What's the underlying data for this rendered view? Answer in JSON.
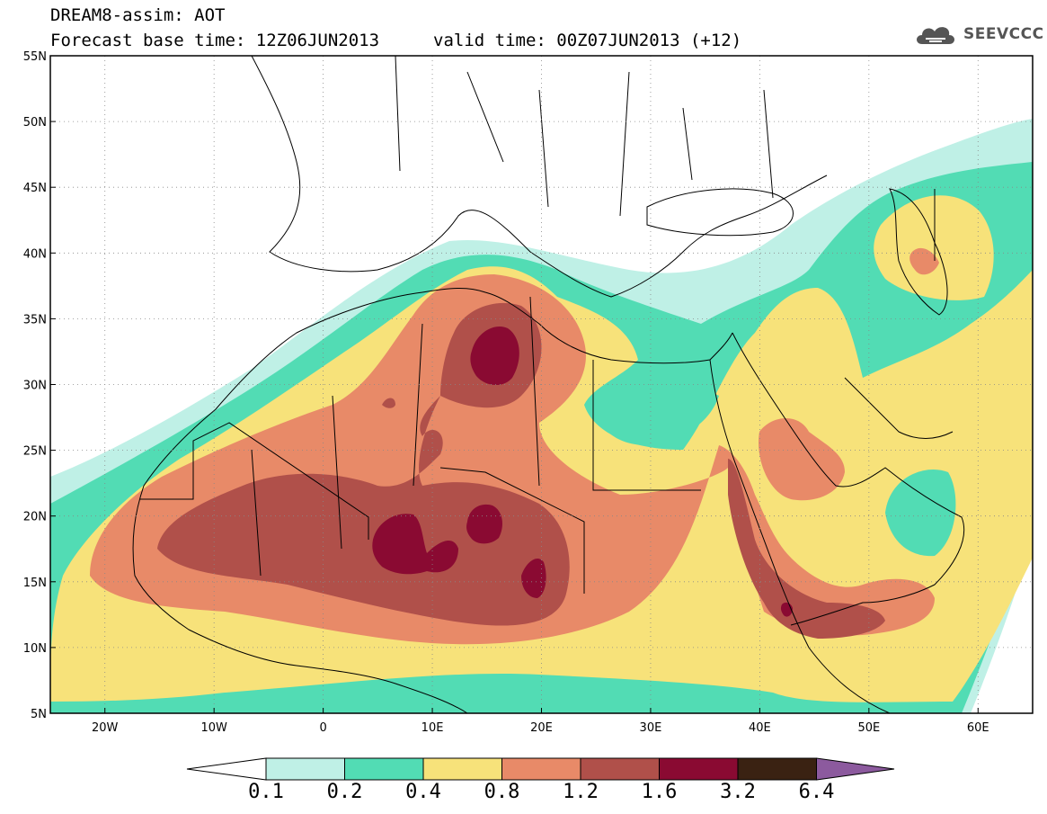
{
  "header": {
    "title": "DREAM8-assim: AOT",
    "base_time_label": "Forecast base time: 12Z06JUN2013",
    "valid_time_label": "valid time: 00Z07JUN2013 (+12)",
    "logo_text": "SEEVCCC",
    "logo_icon": "cloud-icon"
  },
  "map": {
    "lon_range": [
      -25,
      65
    ],
    "lat_range": [
      5,
      55
    ],
    "lat_ticks": [
      "5N",
      "10N",
      "15N",
      "20N",
      "25N",
      "30N",
      "35N",
      "40N",
      "45N",
      "50N",
      "55N"
    ],
    "lon_ticks": [
      "20W",
      "10W",
      "0",
      "10E",
      "20E",
      "30E",
      "40E",
      "50E",
      "60E"
    ],
    "grid": "dotted"
  },
  "legend": {
    "levels": [
      "0.1",
      "0.2",
      "0.4",
      "0.8",
      "1.2",
      "1.6",
      "3.2",
      "6.4"
    ],
    "colors": {
      "below": "#ffffff",
      "c1": "#bff0e6",
      "c2": "#52dcb4",
      "c3": "#f7e27a",
      "c4": "#e88a68",
      "c5": "#b0504a",
      "c6": "#8a0a32",
      "c7": "#3a2212",
      "above": "#8c5a9e"
    }
  }
}
